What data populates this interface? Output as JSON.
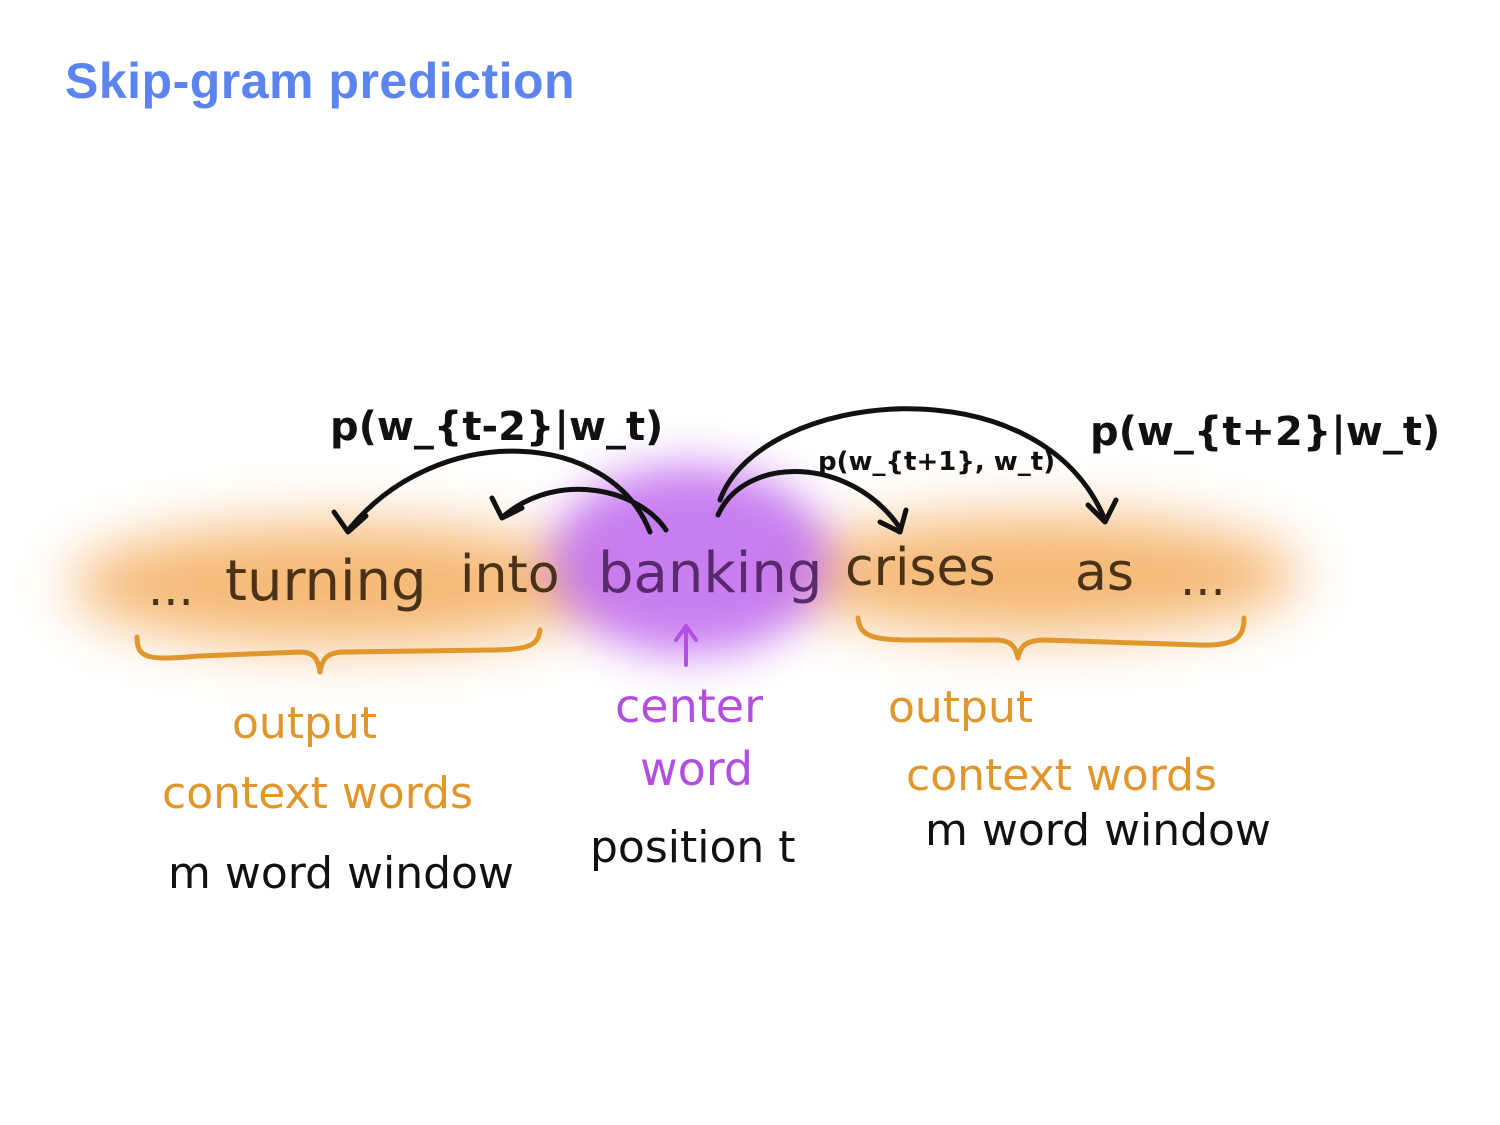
{
  "title": "Skip-gram prediction",
  "sentence": {
    "left_ellipsis": "...",
    "word_t_minus_2": "turning",
    "word_t_minus_1": "into",
    "center_word": "banking",
    "word_t_plus_1": "crises",
    "word_t_plus_2": "as",
    "right_ellipsis": "..."
  },
  "probabilities": {
    "p_t_minus_2": "p(w_{t-2}|w_t)",
    "p_t_plus_1": "p(w_{t+1}, w_t)",
    "p_t_plus_2": "p(w_{t+2}|w_t)"
  },
  "labels": {
    "left_output_line1": "output",
    "left_output_line2": "context words",
    "left_window": "m word window",
    "center_line1": "center",
    "center_line2": "word",
    "center_position": "position t",
    "right_output_line1": "output",
    "right_output_line2": "context words",
    "right_window": "m word window"
  },
  "colors": {
    "title": "#5b84ee",
    "context_highlight": "#f2a24a",
    "center_highlight": "#c067ee",
    "context_label": "#e0962a",
    "center_label": "#b24fe0",
    "ink": "#111111"
  }
}
